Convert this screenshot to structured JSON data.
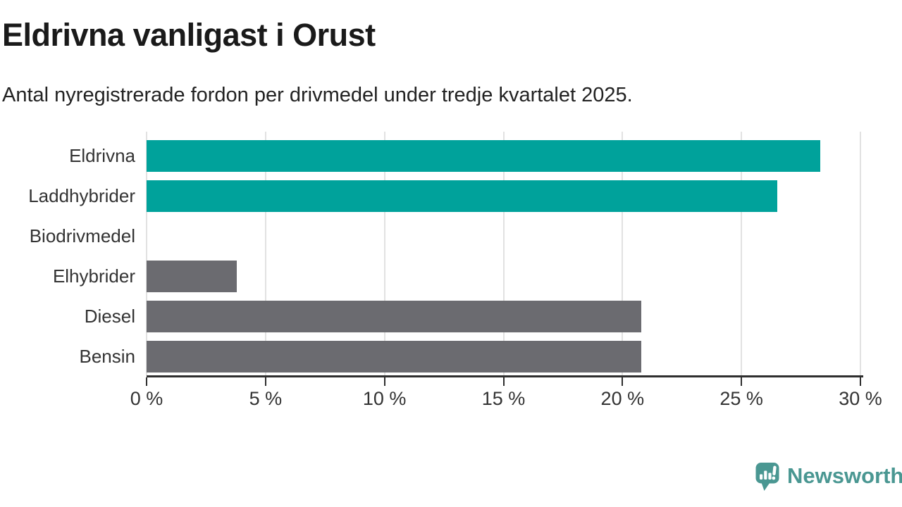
{
  "header": {
    "title": "Eldrivna vanligast i Orust",
    "subtitle": "Antal nyregistrerade fordon per drivmedel under tredje kvartalet 2025."
  },
  "chart_data": {
    "type": "bar",
    "orientation": "horizontal",
    "title": "Eldrivna vanligast i Orust",
    "subtitle": "Antal nyregistrerade fordon per drivmedel under tredje kvartalet 2025.",
    "categories": [
      "Eldrivna",
      "Laddhybrider",
      "Biodrivmedel",
      "Elhybrider",
      "Diesel",
      "Bensin"
    ],
    "values": [
      28.3,
      26.5,
      0,
      3.8,
      20.8,
      20.8
    ],
    "unit": "%",
    "xlabel": "",
    "ylabel": "",
    "xlim": [
      0,
      30
    ],
    "x_tick_values": [
      0,
      5,
      10,
      15,
      20,
      25,
      30
    ],
    "x_ticks": [
      "0 %",
      "5 %",
      "10 %",
      "15 %",
      "20 %",
      "25 %",
      "30 %"
    ],
    "grid": "vertical",
    "legend": "none",
    "bar_colors": [
      "#00a29b",
      "#00a29b",
      "#6b6b70",
      "#6b6b70",
      "#6b6b70",
      "#6b6b70"
    ],
    "highlight_color": "#00a29b",
    "default_color": "#6b6b70",
    "gridline_color": "#e2e2e2",
    "axis_color": "#2e2e2e"
  },
  "footer": {
    "brand": "Newsworthy",
    "brand_color": "#4a9792",
    "logo_icon": "speech-bubble-bar-chart-icon"
  }
}
